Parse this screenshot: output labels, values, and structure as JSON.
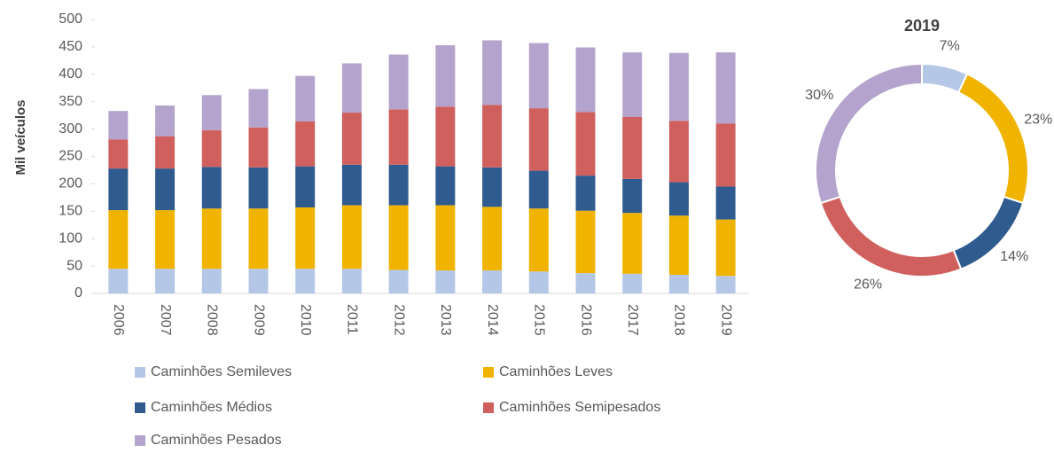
{
  "chart_data": [
    {
      "type": "stacked_bar",
      "ylabel": "Mil veículos",
      "categories": [
        "2006",
        "2007",
        "2008",
        "2009",
        "2010",
        "2011",
        "2012",
        "2013",
        "2014",
        "2015",
        "2016",
        "2017",
        "2018",
        "2019"
      ],
      "series": [
        {
          "name": "Caminhões Semileves",
          "color": "#b4c7e7",
          "values": [
            45,
            45,
            45,
            45,
            45,
            45,
            43,
            42,
            42,
            40,
            37,
            36,
            34,
            32
          ]
        },
        {
          "name": "Caminhões Leves",
          "color": "#f0b400",
          "values": [
            107,
            107,
            110,
            110,
            112,
            116,
            118,
            119,
            116,
            115,
            114,
            111,
            108,
            103
          ]
        },
        {
          "name": "Caminhões Médios",
          "color": "#2f5b8f",
          "values": [
            76,
            76,
            76,
            75,
            75,
            74,
            74,
            71,
            72,
            69,
            64,
            62,
            61,
            60
          ]
        },
        {
          "name": "Caminhões Semipesados",
          "color": "#d0605e",
          "values": [
            53,
            59,
            67,
            73,
            82,
            95,
            101,
            109,
            114,
            114,
            116,
            113,
            112,
            115
          ]
        },
        {
          "name": "Caminhões Pesados",
          "color": "#b4a3cc",
          "values": [
            52,
            56,
            64,
            70,
            83,
            90,
            100,
            112,
            118,
            119,
            118,
            118,
            124,
            130
          ]
        }
      ],
      "ylim": [
        0,
        500
      ],
      "yticks": [
        0,
        50,
        100,
        150,
        200,
        250,
        300,
        350,
        400,
        450,
        500
      ]
    },
    {
      "type": "donut",
      "title": "2019",
      "values": [
        7,
        23,
        14,
        26,
        30
      ],
      "value_labels": [
        "7%",
        "23%",
        "14%",
        "26%",
        "30%"
      ],
      "colors": [
        "#b4c7e7",
        "#f0b400",
        "#2f5b8f",
        "#d0605e",
        "#b4a3cc"
      ]
    }
  ]
}
